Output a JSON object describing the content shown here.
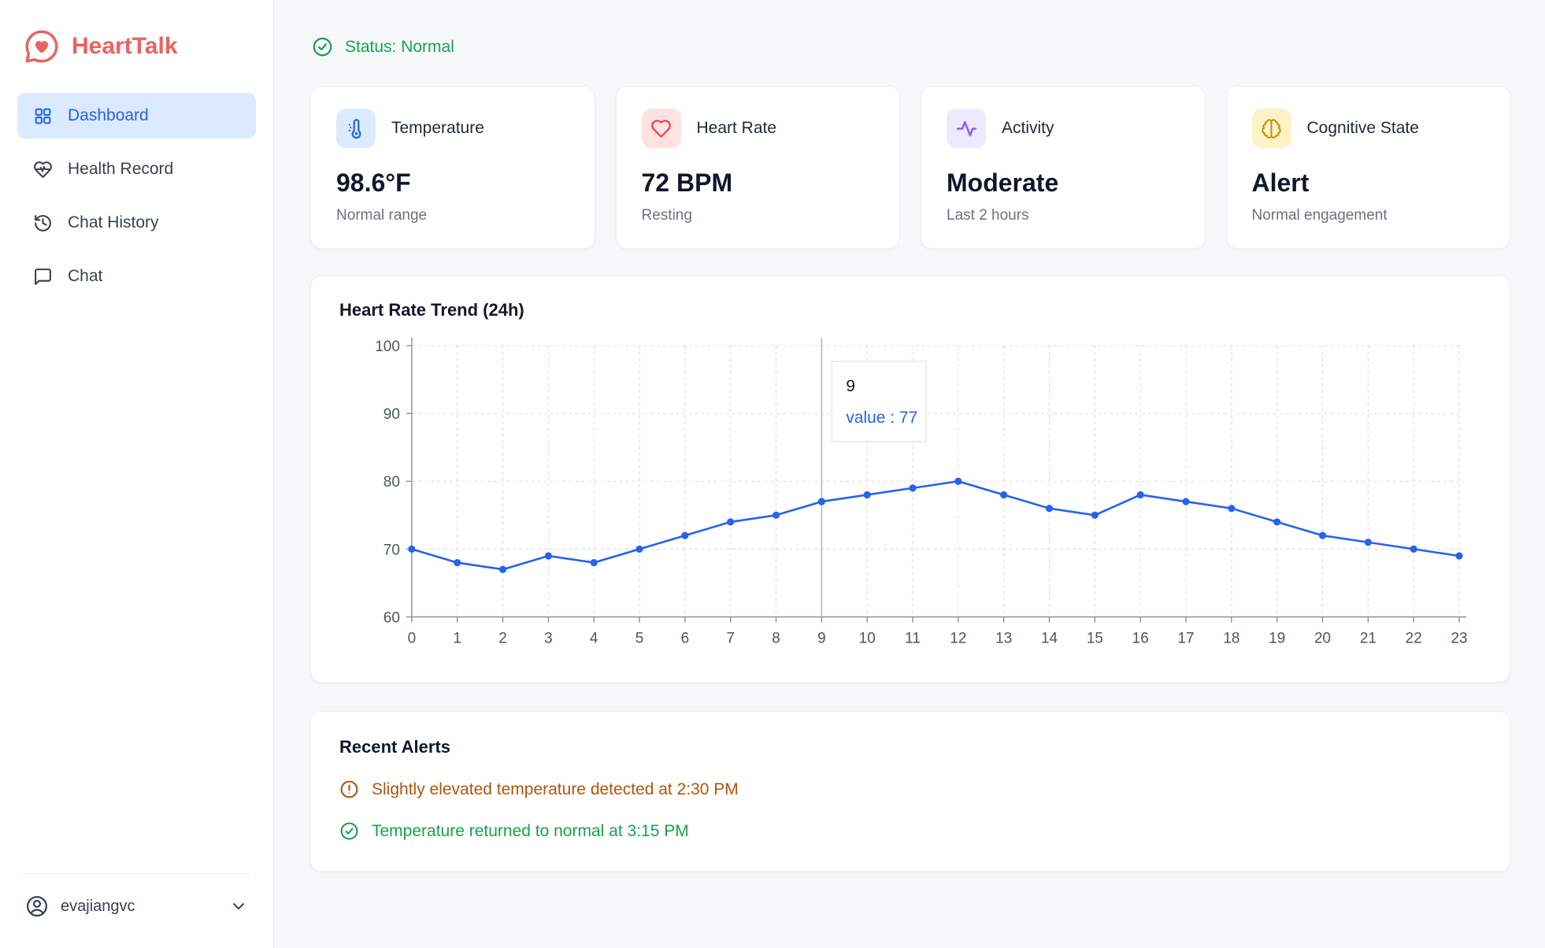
{
  "app": {
    "name": "HeartTalk"
  },
  "sidebar": {
    "items": [
      {
        "label": "Dashboard",
        "active": true
      },
      {
        "label": "Health Record",
        "active": false
      },
      {
        "label": "Chat History",
        "active": false
      },
      {
        "label": "Chat",
        "active": false
      }
    ],
    "user": {
      "name": "evajiangvc"
    }
  },
  "status": {
    "label": "Status: Normal",
    "color": "#16a34a"
  },
  "cards": [
    {
      "title": "Temperature",
      "value": "98.6°F",
      "subtitle": "Normal range",
      "icon": "thermometer-icon",
      "accent": "#2563eb",
      "icon_bg": "#dbeafe"
    },
    {
      "title": "Heart Rate",
      "value": "72 BPM",
      "subtitle": "Resting",
      "icon": "heart-icon",
      "accent": "#ef4444",
      "icon_bg": "#fee2e2"
    },
    {
      "title": "Activity",
      "value": "Moderate",
      "subtitle": "Last 2 hours",
      "icon": "activity-icon",
      "accent": "#8b5cf6",
      "icon_bg": "#ede9fe"
    },
    {
      "title": "Cognitive State",
      "value": "Alert",
      "subtitle": "Normal engagement",
      "icon": "brain-icon",
      "accent": "#ca8a04",
      "icon_bg": "#fef3c7"
    }
  ],
  "chart_data": {
    "type": "line",
    "title": "Heart Rate Trend (24h)",
    "x": [
      0,
      1,
      2,
      3,
      4,
      5,
      6,
      7,
      8,
      9,
      10,
      11,
      12,
      13,
      14,
      15,
      16,
      17,
      18,
      19,
      20,
      21,
      22,
      23
    ],
    "values": [
      70,
      68,
      67,
      69,
      68,
      70,
      72,
      74,
      75,
      77,
      78,
      79,
      80,
      78,
      76,
      75,
      78,
      77,
      76,
      74,
      72,
      71,
      70,
      69
    ],
    "ylim": [
      60,
      100
    ],
    "yticks": [
      60,
      70,
      80,
      90,
      100
    ],
    "grid": true,
    "line_color": "#2563eb",
    "tooltip": {
      "x": 9,
      "label": "9",
      "value_text": "value : 77"
    }
  },
  "alerts": {
    "title": "Recent Alerts",
    "items": [
      {
        "text": "Slightly elevated temperature detected at 2:30 PM",
        "type": "warning",
        "color": "#b45309"
      },
      {
        "text": "Temperature returned to normal at 3:15 PM",
        "type": "success",
        "color": "#16a34a"
      }
    ]
  }
}
